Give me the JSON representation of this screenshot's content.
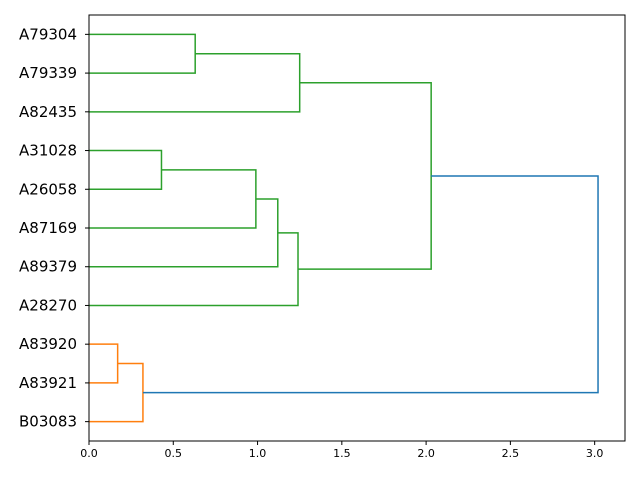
{
  "chart_data": {
    "type": "dendrogram",
    "orientation": "left",
    "leaves": [
      "A79304",
      "A79339",
      "A82435",
      "A31028",
      "A26058",
      "A87169",
      "A89379",
      "A28270",
      "A83920",
      "A83921",
      "B03083"
    ],
    "xlim": [
      0,
      3.18
    ],
    "xticks": [
      0.0,
      0.5,
      1.0,
      1.5,
      2.0,
      2.5,
      3.0
    ],
    "xtick_labels": [
      "0.0",
      "0.5",
      "1.0",
      "1.5",
      "2.0",
      "2.5",
      "3.0"
    ],
    "colors": {
      "green": "#2ca02c",
      "orange": "#ff7f0e",
      "blue": "#1f77b4"
    },
    "merges": [
      {
        "a": "A79304",
        "b": "A79339",
        "height": 0.63,
        "color": "green",
        "id": "c1"
      },
      {
        "a": "c1",
        "b": "A82435",
        "height": 1.25,
        "color": "green",
        "id": "c2"
      },
      {
        "a": "A31028",
        "b": "A26058",
        "height": 0.43,
        "color": "green",
        "id": "c3"
      },
      {
        "a": "c3",
        "b": "A87169",
        "height": 0.99,
        "color": "green",
        "id": "c4"
      },
      {
        "a": "c4",
        "b": "A89379",
        "height": 1.12,
        "color": "green",
        "id": "c5"
      },
      {
        "a": "c5",
        "b": "A28270",
        "height": 1.24,
        "color": "green",
        "id": "c6"
      },
      {
        "a": "c2",
        "b": "c6",
        "height": 2.03,
        "color": "green",
        "id": "c7"
      },
      {
        "a": "A83920",
        "b": "A83921",
        "height": 0.17,
        "color": "orange",
        "id": "c8"
      },
      {
        "a": "c8",
        "b": "B03083",
        "height": 0.32,
        "color": "orange",
        "id": "c9"
      },
      {
        "a": "c7",
        "b": "c9",
        "height": 3.02,
        "color": "blue",
        "id": "c10"
      }
    ]
  }
}
